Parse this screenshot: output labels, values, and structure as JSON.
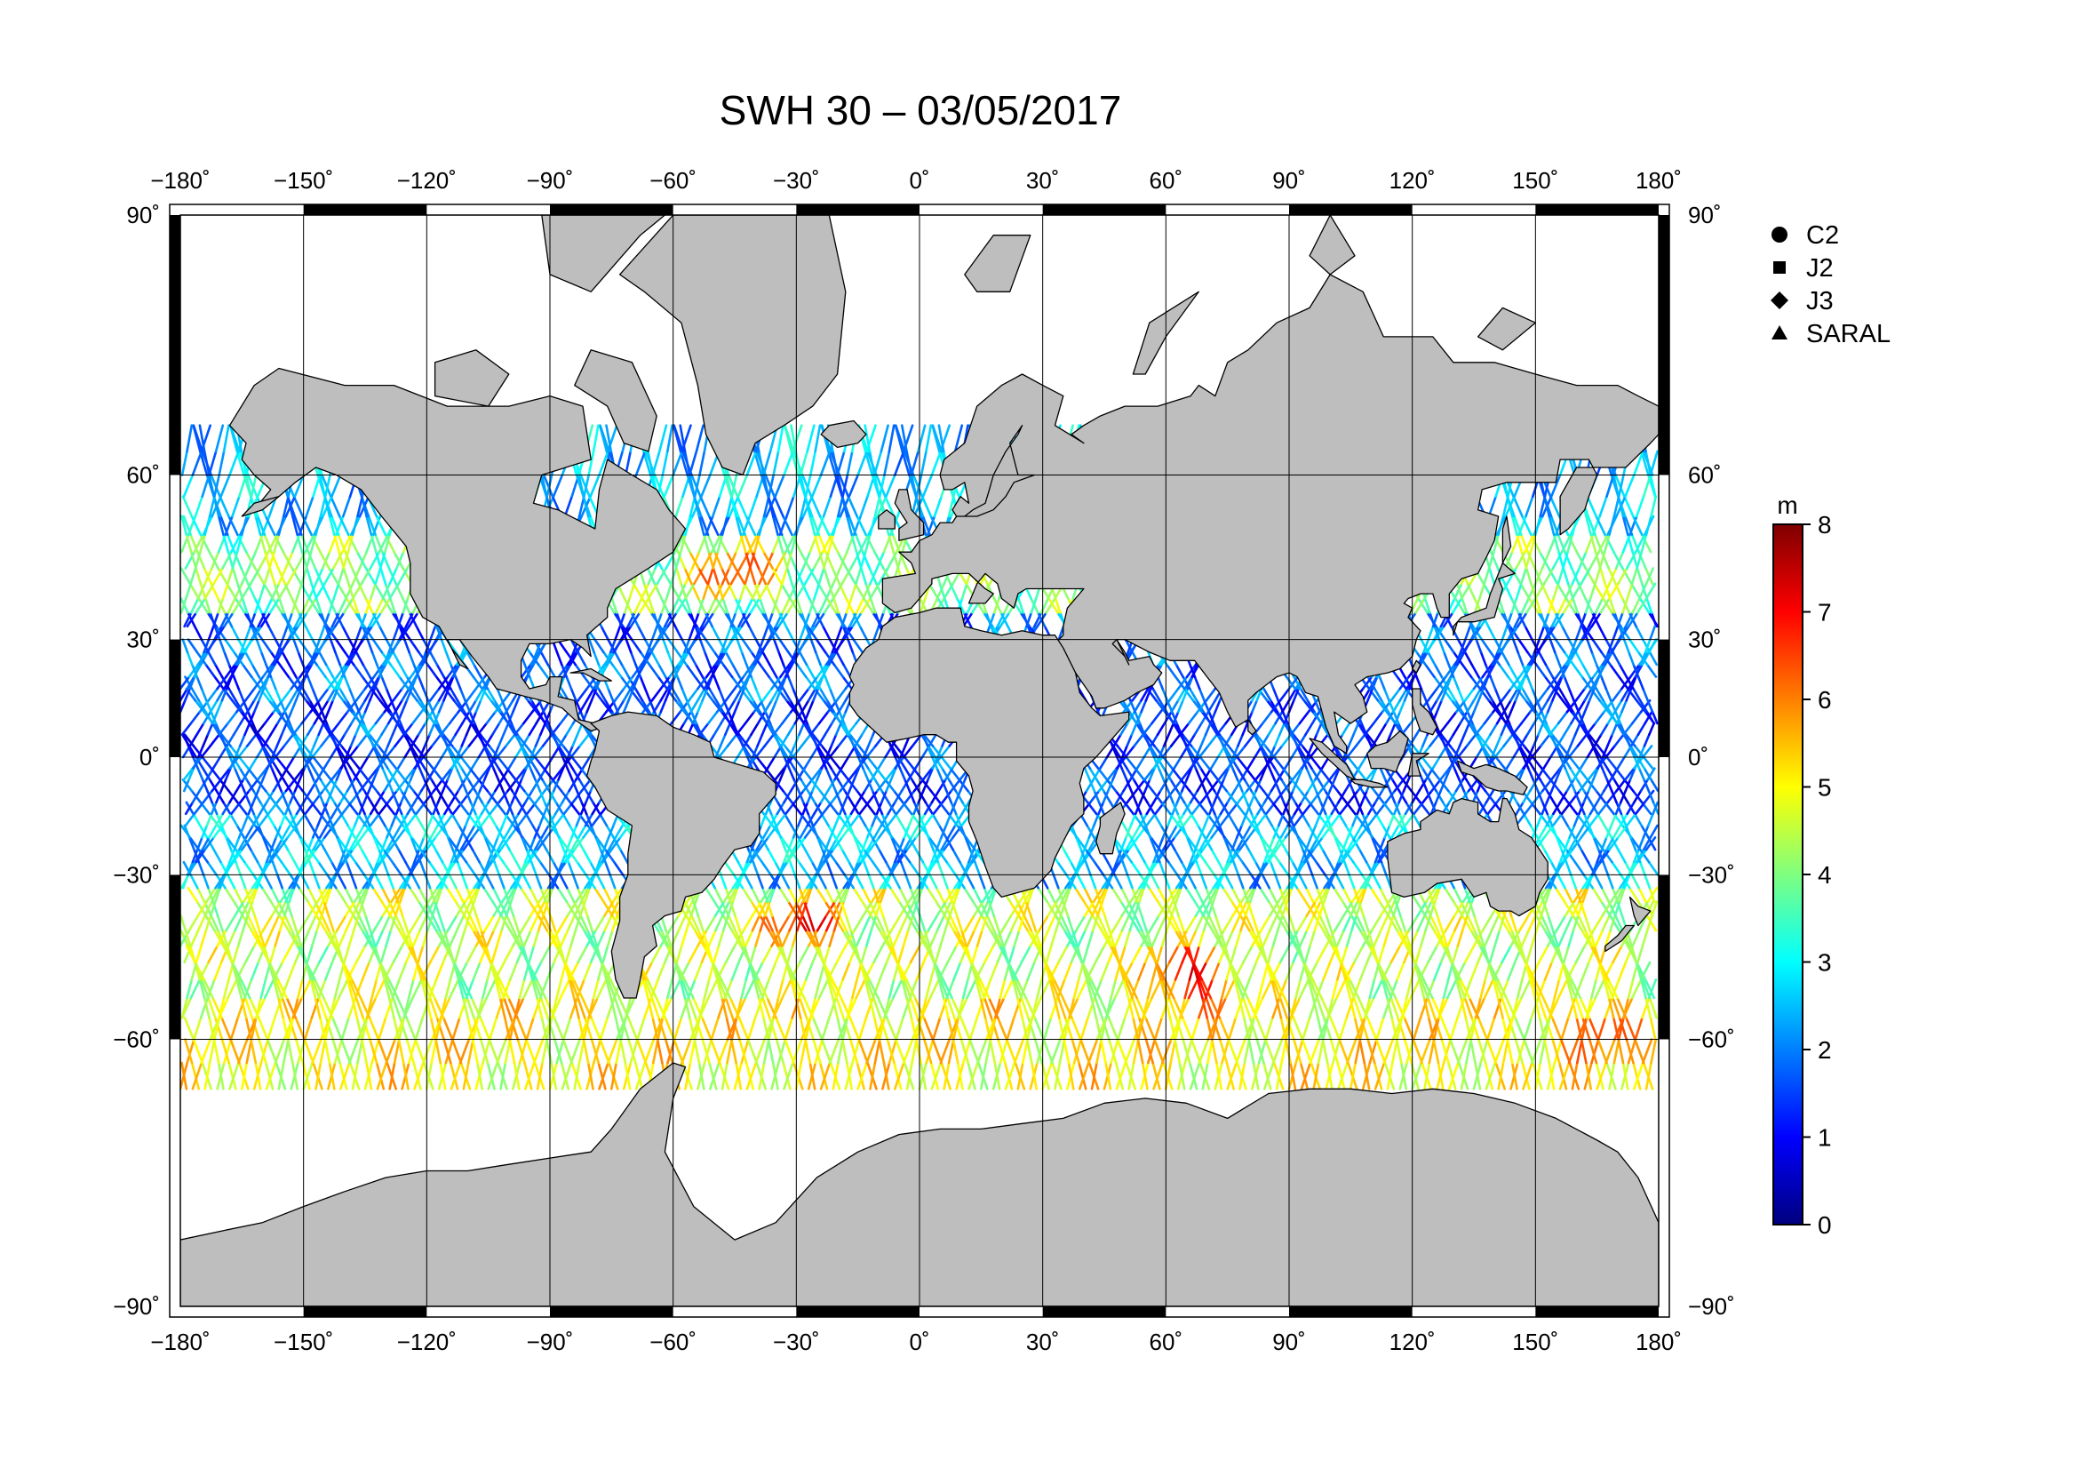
{
  "title": "SWH 30 – 03/05/2017",
  "axes": {
    "lon_ticks": [
      {
        "value": -180,
        "label": "−180˚"
      },
      {
        "value": -150,
        "label": "−150˚"
      },
      {
        "value": -120,
        "label": "−120˚"
      },
      {
        "value": -90,
        "label": "−90˚"
      },
      {
        "value": -60,
        "label": "−60˚"
      },
      {
        "value": -30,
        "label": "−30˚"
      },
      {
        "value": 0,
        "label": "0˚"
      },
      {
        "value": 30,
        "label": "30˚"
      },
      {
        "value": 60,
        "label": "60˚"
      },
      {
        "value": 90,
        "label": "90˚"
      },
      {
        "value": 120,
        "label": "120˚"
      },
      {
        "value": 150,
        "label": "150˚"
      },
      {
        "value": 180,
        "label": "180˚"
      }
    ],
    "lat_ticks": [
      {
        "value": 90,
        "label": "90˚"
      },
      {
        "value": 60,
        "label": "60˚"
      },
      {
        "value": 30,
        "label": "30˚"
      },
      {
        "value": 0,
        "label": "0˚"
      },
      {
        "value": -30,
        "label": "−30˚"
      },
      {
        "value": -60,
        "label": "−60˚"
      },
      {
        "value": -90,
        "label": "−90˚"
      }
    ],
    "lon_range": [
      -180,
      180
    ],
    "lat_range": [
      -90,
      90
    ],
    "grid": true,
    "projection": "mercator"
  },
  "legend": {
    "placement": "top-right",
    "items": [
      {
        "name": "C2",
        "marker": "circle"
      },
      {
        "name": "J2",
        "marker": "square"
      },
      {
        "name": "J3",
        "marker": "diamond"
      },
      {
        "name": "SARAL",
        "marker": "triangle"
      }
    ]
  },
  "colorbar": {
    "unit": "m",
    "range": [
      0,
      8
    ],
    "tick_labels": [
      "0",
      "1",
      "2",
      "3",
      "4",
      "5",
      "6",
      "7",
      "8"
    ],
    "colormap": "jet"
  },
  "colors": {
    "land": "#bebebe",
    "ocean": "#ffffff",
    "coast": "#000000",
    "grid": "#000000"
  },
  "chart_data": {
    "type": "scatter",
    "title": "SWH 30 – 03/05/2017",
    "xlabel": "",
    "ylabel": "",
    "xlim": [
      -180,
      180
    ],
    "ylim": [
      -90,
      90
    ],
    "color_variable_unit": "m",
    "color_range": [
      0,
      8
    ],
    "series": [
      {
        "name": "C2"
      },
      {
        "name": "J2"
      },
      {
        "name": "J3"
      },
      {
        "name": "SARAL"
      }
    ],
    "swh_by_latitude_band": [
      {
        "lat_band": [
          50,
          65
        ],
        "swh_m": 2.5
      },
      {
        "lat_band": [
          35,
          50
        ],
        "swh_m": 4.0
      },
      {
        "lat_band": [
          15,
          35
        ],
        "swh_m": 1.8
      },
      {
        "lat_band": [
          -15,
          15
        ],
        "swh_m": 1.6
      },
      {
        "lat_band": [
          -35,
          -15
        ],
        "swh_m": 2.5
      },
      {
        "lat_band": [
          -55,
          -35
        ],
        "swh_m": 4.5
      },
      {
        "lat_band": [
          -66,
          -55
        ],
        "swh_m": 5.0
      }
    ],
    "peak_regions": [
      {
        "lon": 65,
        "lat": -52,
        "swh_m": 7.6
      },
      {
        "lon": -45,
        "lat": 43,
        "swh_m": 6.8
      },
      {
        "lon": 165,
        "lat": -60,
        "swh_m": 7.0
      },
      {
        "lon": -28,
        "lat": -42,
        "swh_m": 7.2
      }
    ]
  }
}
